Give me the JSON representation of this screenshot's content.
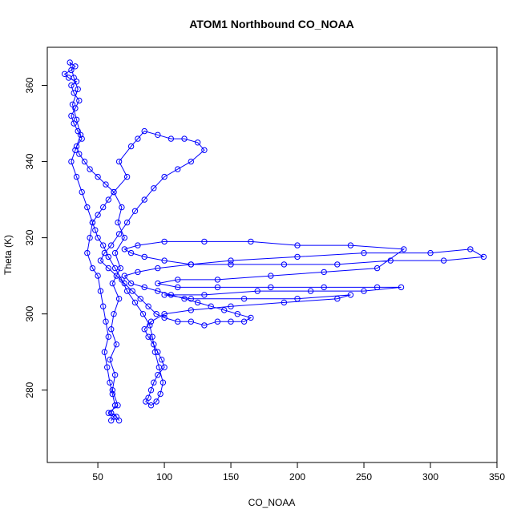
{
  "chart_data": {
    "type": "scatter",
    "title": "ATOM1 Northbound CO_NOAA",
    "xlabel": "CO_NOAA",
    "ylabel": "Theta (K)",
    "xlim": [
      12,
      350
    ],
    "ylim": [
      261,
      370
    ],
    "x_ticks": [
      50,
      100,
      150,
      200,
      250,
      300,
      350
    ],
    "y_ticks": [
      280,
      300,
      320,
      340,
      360
    ],
    "x_tick_labels": [
      "50",
      "100",
      "150",
      "200",
      "250",
      "300",
      "350"
    ],
    "y_tick_labels": [
      "280",
      "300",
      "320",
      "340",
      "360"
    ],
    "grid": false,
    "legend": "none",
    "series_color": "#0000ff",
    "marker": "open-circle-with-line",
    "series": [
      {
        "values": [
          [
            60,
            272
          ],
          [
            62,
            273
          ],
          [
            58,
            274
          ],
          [
            65,
            276
          ],
          [
            61,
            280
          ],
          [
            63,
            284
          ],
          [
            59,
            288
          ],
          [
            64,
            292
          ],
          [
            60,
            296
          ],
          [
            62,
            300
          ],
          [
            66,
            304
          ],
          [
            61,
            308
          ],
          [
            67,
            312
          ],
          [
            63,
            316
          ],
          [
            70,
            320
          ],
          [
            65,
            324
          ],
          [
            68,
            328
          ],
          [
            62,
            332
          ],
          [
            72,
            336
          ],
          [
            66,
            340
          ],
          [
            75,
            344
          ],
          [
            80,
            346
          ],
          [
            85,
            348
          ],
          [
            95,
            347
          ],
          [
            105,
            346
          ],
          [
            115,
            346
          ],
          [
            125,
            345
          ],
          [
            130,
            343
          ],
          [
            120,
            340
          ],
          [
            110,
            338
          ],
          [
            100,
            336
          ],
          [
            92,
            333
          ],
          [
            85,
            330
          ],
          [
            78,
            327
          ],
          [
            72,
            324
          ],
          [
            66,
            321
          ],
          [
            60,
            318
          ],
          [
            55,
            316
          ],
          [
            52,
            314
          ],
          [
            58,
            312
          ],
          [
            64,
            310
          ],
          [
            70,
            308
          ],
          [
            76,
            306
          ],
          [
            82,
            304
          ],
          [
            88,
            302
          ],
          [
            94,
            300
          ],
          [
            100,
            299
          ],
          [
            110,
            298
          ],
          [
            120,
            298
          ],
          [
            130,
            297
          ],
          [
            140,
            298
          ],
          [
            150,
            298
          ],
          [
            160,
            298
          ],
          [
            165,
            299
          ],
          [
            155,
            300
          ],
          [
            145,
            301
          ],
          [
            135,
            302
          ],
          [
            125,
            303
          ],
          [
            115,
            304
          ],
          [
            105,
            305
          ],
          [
            95,
            306
          ],
          [
            85,
            307
          ],
          [
            75,
            308
          ],
          [
            70,
            310
          ],
          [
            80,
            311
          ],
          [
            95,
            312
          ],
          [
            120,
            313
          ],
          [
            150,
            314
          ],
          [
            200,
            315
          ],
          [
            250,
            316
          ],
          [
            300,
            316
          ],
          [
            330,
            317
          ],
          [
            340,
            315
          ],
          [
            310,
            314
          ],
          [
            270,
            314
          ],
          [
            230,
            313
          ],
          [
            190,
            313
          ],
          [
            150,
            313
          ],
          [
            120,
            313
          ],
          [
            100,
            314
          ],
          [
            85,
            315
          ],
          [
            75,
            316
          ],
          [
            70,
            317
          ],
          [
            80,
            318
          ],
          [
            100,
            319
          ],
          [
            130,
            319
          ],
          [
            165,
            319
          ],
          [
            200,
            318
          ],
          [
            240,
            318
          ],
          [
            280,
            317
          ],
          [
            260,
            312
          ],
          [
            220,
            311
          ],
          [
            180,
            310
          ],
          [
            140,
            309
          ],
          [
            110,
            309
          ],
          [
            95,
            308
          ],
          [
            110,
            307
          ],
          [
            140,
            307
          ],
          [
            180,
            307
          ],
          [
            220,
            307
          ],
          [
            260,
            307
          ],
          [
            278,
            307
          ],
          [
            250,
            306
          ],
          [
            210,
            306
          ],
          [
            170,
            306
          ],
          [
            130,
            305
          ],
          [
            100,
            305
          ],
          [
            120,
            304
          ],
          [
            160,
            304
          ],
          [
            200,
            304
          ],
          [
            240,
            305
          ],
          [
            230,
            304
          ],
          [
            190,
            303
          ],
          [
            150,
            302
          ],
          [
            120,
            301
          ],
          [
            100,
            300
          ],
          [
            90,
            298
          ],
          [
            85,
            296
          ],
          [
            88,
            294
          ],
          [
            92,
            292
          ],
          [
            95,
            290
          ],
          [
            98,
            288
          ],
          [
            100,
            286
          ],
          [
            95,
            284
          ],
          [
            92,
            282
          ],
          [
            90,
            280
          ],
          [
            88,
            278
          ],
          [
            86,
            277
          ],
          [
            90,
            276
          ],
          [
            94,
            277
          ],
          [
            97,
            279
          ],
          [
            99,
            282
          ],
          [
            96,
            286
          ],
          [
            93,
            290
          ],
          [
            91,
            294
          ],
          [
            89,
            297
          ],
          [
            84,
            300
          ],
          [
            78,
            303
          ],
          [
            72,
            306
          ],
          [
            68,
            309
          ],
          [
            63,
            312
          ],
          [
            58,
            315
          ],
          [
            54,
            318
          ],
          [
            50,
            320
          ],
          [
            48,
            322
          ],
          [
            46,
            324
          ],
          [
            50,
            326
          ],
          [
            54,
            328
          ],
          [
            58,
            330
          ],
          [
            62,
            332
          ],
          [
            56,
            334
          ],
          [
            50,
            336
          ],
          [
            44,
            338
          ],
          [
            40,
            340
          ],
          [
            36,
            342
          ],
          [
            34,
            344
          ],
          [
            38,
            346
          ],
          [
            35,
            348
          ],
          [
            32,
            350
          ],
          [
            30,
            352
          ],
          [
            33,
            354
          ],
          [
            36,
            356
          ],
          [
            32,
            358
          ],
          [
            30,
            360
          ],
          [
            34,
            361
          ],
          [
            28,
            362
          ],
          [
            25,
            363
          ],
          [
            30,
            364
          ],
          [
            33,
            365
          ],
          [
            29,
            366
          ],
          [
            32,
            362
          ],
          [
            35,
            359
          ],
          [
            31,
            355
          ],
          [
            34,
            351
          ],
          [
            37,
            347
          ],
          [
            33,
            343
          ],
          [
            30,
            340
          ],
          [
            34,
            336
          ],
          [
            38,
            332
          ],
          [
            42,
            328
          ],
          [
            46,
            324
          ],
          [
            44,
            320
          ],
          [
            42,
            316
          ],
          [
            46,
            312
          ],
          [
            50,
            310
          ],
          [
            52,
            306
          ],
          [
            54,
            302
          ],
          [
            56,
            298
          ],
          [
            58,
            294
          ],
          [
            55,
            290
          ],
          [
            57,
            286
          ],
          [
            59,
            282
          ],
          [
            61,
            279
          ],
          [
            63,
            276
          ],
          [
            60,
            274
          ],
          [
            64,
            273
          ],
          [
            66,
            272
          ]
        ]
      }
    ]
  }
}
